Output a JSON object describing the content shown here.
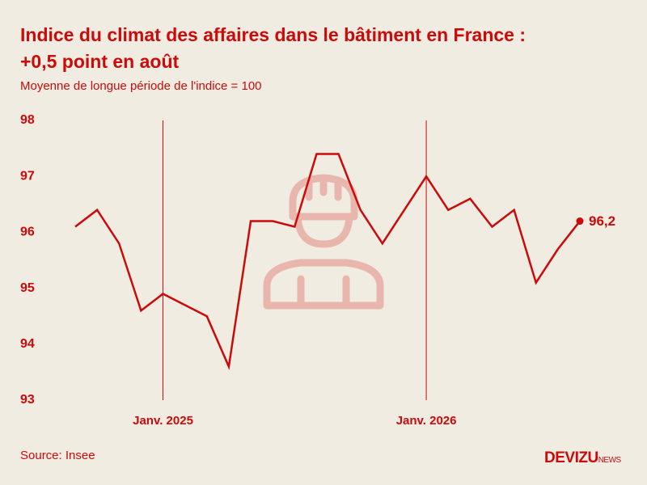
{
  "chart_data": {
    "type": "line",
    "title": [
      "Indice du climat des affaires dans le bâtiment en France :",
      "+0,5 point en août"
    ],
    "subtitle": "Moyenne de longue période de l'indice = 100",
    "source": "Source: Insee",
    "brand": {
      "name": "DEVIZU",
      "suffix": "NEWS"
    },
    "categories": [
      null,
      null,
      null,
      null,
      "Janv. 2025",
      null,
      null,
      null,
      null,
      null,
      null,
      null,
      null,
      null,
      null,
      null,
      "Janv. 2026",
      null,
      null,
      null,
      null,
      null,
      null,
      null
    ],
    "series": [
      {
        "name": "Indice du climat des affaires",
        "color": "#cc0a0a",
        "values": [
          96.1,
          96.4,
          95.8,
          94.6,
          94.9,
          94.7,
          94.5,
          93.6,
          96.2,
          96.2,
          96.1,
          97.4,
          97.4,
          96.4,
          95.8,
          96.4,
          97.0,
          96.4,
          96.6,
          96.1,
          96.4,
          95.1,
          95.7,
          96.2
        ],
        "value_labels": [
          null,
          null,
          null,
          null,
          null,
          null,
          null,
          null,
          null,
          null,
          null,
          null,
          null,
          null,
          null,
          null,
          null,
          null,
          null,
          null,
          null,
          null,
          null,
          "96,2"
        ]
      }
    ],
    "ylim": [
      93,
      98
    ],
    "yticks": [
      93,
      94,
      95,
      96,
      97,
      98
    ]
  }
}
